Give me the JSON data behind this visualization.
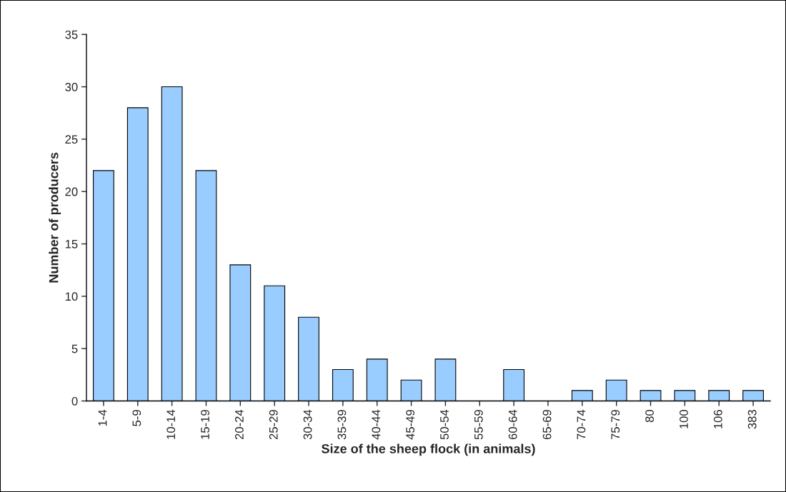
{
  "chart_data": {
    "type": "bar",
    "xlabel": "Size of the sheep flock (in animals)",
    "ylabel": "Number of producers",
    "categories": [
      "1-4",
      "5-9",
      "10-14",
      "15-19",
      "20-24",
      "25-29",
      "30-34",
      "35-39",
      "40-44",
      "45-49",
      "50-54",
      "55-59",
      "60-64",
      "65-69",
      "70-74",
      "75-79",
      "80",
      "100",
      "106",
      "383"
    ],
    "values": [
      22,
      28,
      30,
      22,
      13,
      11,
      8,
      3,
      4,
      2,
      4,
      0,
      3,
      0,
      1,
      2,
      1,
      1,
      1,
      1
    ],
    "color": "#99ccff",
    "ylim": [
      0,
      35
    ],
    "yticks": [
      0,
      5,
      10,
      15,
      20,
      25,
      30,
      35
    ],
    "grid": false,
    "legend": false
  }
}
